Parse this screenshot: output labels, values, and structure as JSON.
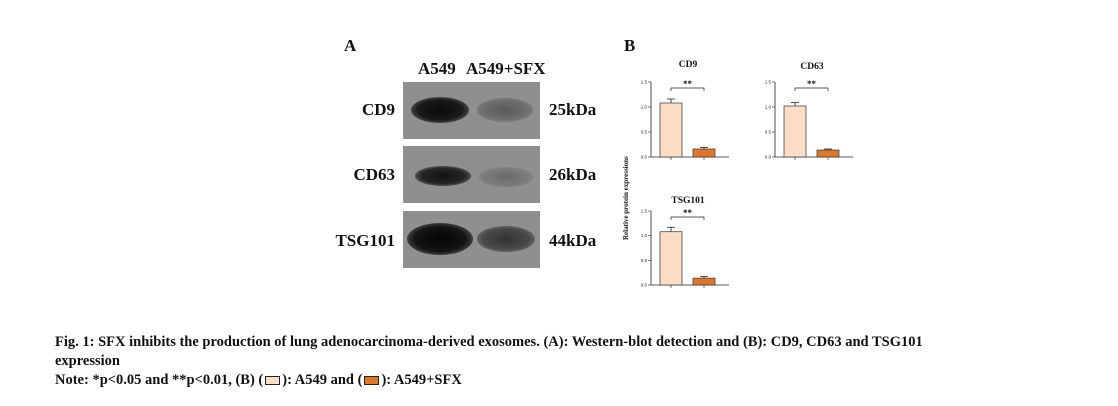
{
  "panel_a": {
    "letter": "A",
    "columns": [
      "A549",
      "A549+SFX"
    ],
    "rows": [
      {
        "protein": "CD9",
        "size": "25kDa",
        "intensity": [
          0.95,
          0.35
        ]
      },
      {
        "protein": "CD63",
        "size": "26kDa",
        "intensity": [
          0.85,
          0.3
        ]
      },
      {
        "protein": "TSG101",
        "size": "44kDa",
        "intensity": [
          1.0,
          0.5
        ]
      }
    ]
  },
  "panel_b": {
    "letter": "B",
    "ylabel": "Relative protein expressions"
  },
  "chart_data": [
    {
      "type": "bar",
      "title": "CD9",
      "categories": [
        "A549",
        "A549+SFX"
      ],
      "values": [
        1.08,
        0.16
      ],
      "errors": [
        0.08,
        0.03
      ],
      "yticks": [
        "0.0",
        "0.5",
        "1.0",
        "1.5"
      ],
      "ylim": [
        0,
        1.5
      ],
      "significance": "**",
      "colors": [
        "#fbdcc4",
        "#e0782a"
      ]
    },
    {
      "type": "bar",
      "title": "CD63",
      "categories": [
        "A549",
        "A549+SFX"
      ],
      "values": [
        1.02,
        0.14
      ],
      "errors": [
        0.07,
        0.02
      ],
      "yticks": [
        "0.0",
        "0.5",
        "1.0",
        "1.5"
      ],
      "ylim": [
        0,
        1.5
      ],
      "significance": "**",
      "colors": [
        "#fbdcc4",
        "#e0782a"
      ]
    },
    {
      "type": "bar",
      "title": "TSG101",
      "categories": [
        "A549",
        "A549+SFX"
      ],
      "values": [
        1.08,
        0.14
      ],
      "errors": [
        0.09,
        0.03
      ],
      "yticks": [
        "0.0",
        "0.5",
        "1.0",
        "1.5"
      ],
      "ylim": [
        0,
        1.5
      ],
      "significance": "**",
      "colors": [
        "#fbdcc4",
        "#e0782a"
      ]
    }
  ],
  "caption": {
    "line1": "Fig. 1: SFX inhibits the production of lung adenocarcinoma-derived exosomes. (A): Western-blot detection and (B): CD9, CD63 and TSG101",
    "line2": "expression",
    "note_prefix": "Note: *p<0.05 and **p<0.01, (B) (",
    "note_mid": "): A549 and (",
    "note_end": "): A549+SFX",
    "swatch_colors": [
      "#fbdcc4",
      "#e0782a"
    ]
  }
}
